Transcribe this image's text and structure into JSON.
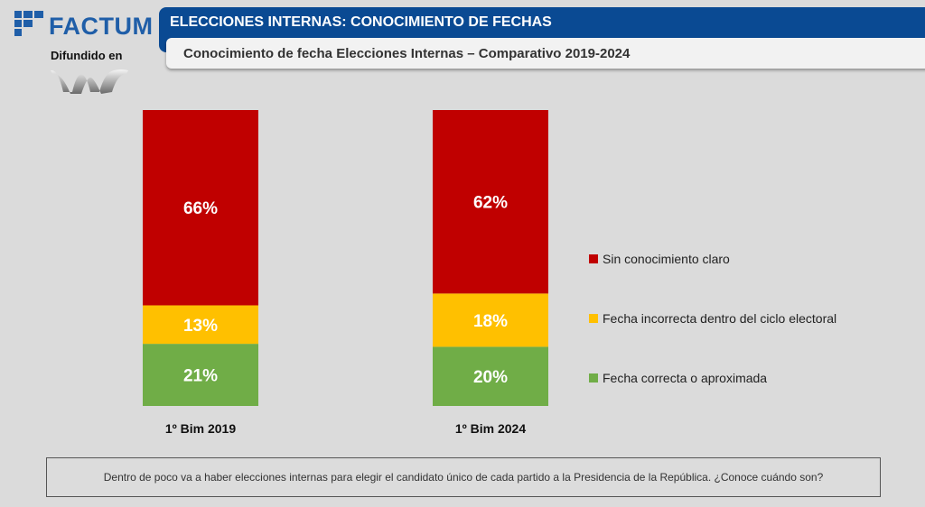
{
  "brand": {
    "logo_text": "FACTUM",
    "difundido": "Difundido en"
  },
  "header": {
    "title": "ELECCIONES INTERNAS: CONOCIMIENTO DE FECHAS",
    "subtitle": "Conocimiento de fecha Elecciones Internas – Comparativo 2019-2024"
  },
  "chart_data": {
    "type": "bar",
    "stacked": true,
    "categories": [
      "1º Bim 2019",
      "1º Bim 2024"
    ],
    "series": [
      {
        "name": "Fecha correcta o aproximada",
        "color": "#70ad47",
        "values": [
          21,
          20
        ],
        "labels": [
          "21%",
          "20%"
        ]
      },
      {
        "name": "Fecha incorrecta dentro del ciclo electoral",
        "color": "#ffc000",
        "values": [
          13,
          18
        ],
        "labels": [
          "13%",
          "18%"
        ]
      },
      {
        "name": "Sin conocimiento claro",
        "color": "#c00000",
        "values": [
          66,
          62
        ],
        "labels": [
          "66%",
          "62%"
        ]
      }
    ],
    "ylim": [
      0,
      100
    ],
    "unit": "%",
    "legend_position": "right",
    "legend_order": [
      "Sin conocimiento claro",
      "Fecha incorrecta dentro del ciclo electoral",
      "Fecha correcta o aproximada"
    ],
    "grid": false,
    "title": "Conocimiento de fecha Elecciones Internas – Comparativo 2019-2024",
    "xlabel": "",
    "ylabel": ""
  },
  "legend": {
    "items": [
      {
        "label": "Sin conocimiento claro",
        "color": "#c00000"
      },
      {
        "label": "Fecha incorrecta dentro del ciclo electoral",
        "color": "#ffc000"
      },
      {
        "label": "Fecha correcta o aproximada",
        "color": "#70ad47"
      }
    ]
  },
  "footer": {
    "question": "Dentro de poco va a haber elecciones internas para elegir el candidato único de cada partido a la Presidencia de la República. ¿Conoce cuándo son?"
  }
}
